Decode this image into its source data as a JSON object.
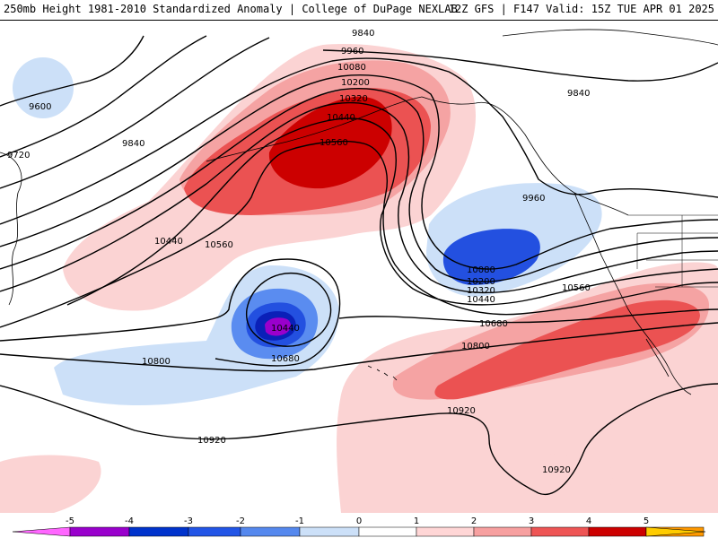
{
  "header": {
    "title": "250mb Height 1981-2010 Standardized Anomaly | College of DuPage NEXLAB",
    "model_info": "12Z GFS | F147 Valid: 15Z TUE APR 01 2025"
  },
  "contour_labels": [
    "9840",
    "9960",
    "10080",
    "10200",
    "10320",
    "10440",
    "10560",
    "9840",
    "9600",
    "9720",
    "9840",
    "10440",
    "10560",
    "9960",
    "10080",
    "10200",
    "10320",
    "10440",
    "10560",
    "10440",
    "10680",
    "10800",
    "10680",
    "10800",
    "10920",
    "10920",
    "10920"
  ],
  "colorbar": {
    "ticks": [
      "-5",
      "-4",
      "-3",
      "-2",
      "-1",
      "0",
      "1",
      "2",
      "3",
      "4",
      "5"
    ],
    "colors": [
      "#ff66ff",
      "#9900cc",
      "#0033cc",
      "#2255e6",
      "#5588ee",
      "#cce0f8",
      "#ffffff",
      "#ffd6d6",
      "#f7a0a0",
      "#ee5555",
      "#cc0000",
      "#ff9900",
      "#ffcc00"
    ]
  },
  "anomaly_colors": {
    "neg1": "#cce0f8",
    "neg2": "#5a8cf0",
    "neg3": "#2350e0",
    "neg4": "#0a20b8",
    "neg5": "#9900cc",
    "pos1": "#fbd3d3",
    "pos2": "#f5a3a3",
    "pos3": "#eb5252",
    "pos4": "#cc0000"
  }
}
